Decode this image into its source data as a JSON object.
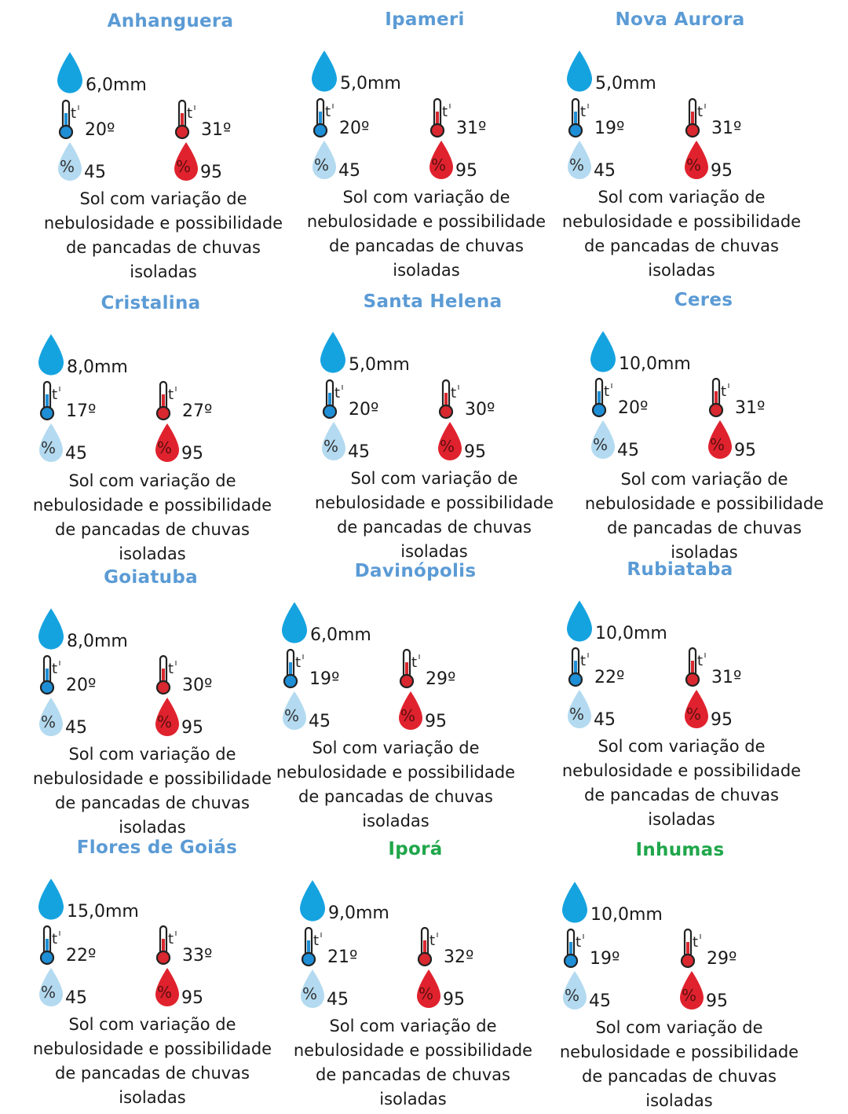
{
  "colors": {
    "title_blue": "#5b9bd5",
    "title_green": "#1fa64a",
    "rain_drop": "#15a3e0",
    "humidity_low_drop": "#b3daf0",
    "humidity_high_drop": "#e0222e",
    "thermo_min": "#1e8fd6",
    "thermo_max": "#d9282f"
  },
  "cities": [
    {
      "name": "Anhanguera",
      "title_color": "blue",
      "rain": "6,0mm",
      "temp_min": "20º",
      "temp_max": "31º",
      "humidity_min": "45",
      "humidity_max": "95",
      "description": [
        "Sol com variação de",
        "nebulosidade e possibilidade",
        "de pancadas de chuvas",
        "isoladas"
      ]
    },
    {
      "name": "Ipameri",
      "title_color": "blue",
      "rain": "5,0mm",
      "temp_min": "20º",
      "temp_max": "31º",
      "humidity_min": "45",
      "humidity_max": "95",
      "description": [
        "Sol com variação de",
        "nebulosidade e possibilidade",
        "de pancadas de chuvas",
        "isoladas"
      ]
    },
    {
      "name": "Nova Aurora",
      "title_color": "blue",
      "rain": "5,0mm",
      "temp_min": "19º",
      "temp_max": "31º",
      "humidity_min": "45",
      "humidity_max": "95",
      "description": [
        "Sol com variação de",
        "nebulosidade e possibilidade",
        "de pancadas de chuvas",
        "isoladas"
      ]
    },
    {
      "name": "Cristalina",
      "title_color": "blue",
      "rain": "8,0mm",
      "temp_min": "17º",
      "temp_max": "27º",
      "humidity_min": "45",
      "humidity_max": "95",
      "description": [
        "Sol com variação de",
        "nebulosidade e possibilidade",
        "de pancadas de chuvas",
        "isoladas"
      ]
    },
    {
      "name": "Santa Helena",
      "title_color": "blue",
      "rain": "5,0mm",
      "temp_min": "20º",
      "temp_max": "30º",
      "humidity_min": "45",
      "humidity_max": "95",
      "description": [
        "Sol com variação de",
        "nebulosidade e possibilidade",
        "de pancadas de chuvas",
        "isoladas"
      ]
    },
    {
      "name": "Ceres",
      "title_color": "blue",
      "rain": "10,0mm",
      "temp_min": "20º",
      "temp_max": "31º",
      "humidity_min": "45",
      "humidity_max": "95",
      "description": [
        "Sol com variação de",
        "nebulosidade e possibilidade",
        "de pancadas de chuvas",
        "isoladas"
      ]
    },
    {
      "name": "Goiatuba",
      "title_color": "blue",
      "rain": "8,0mm",
      "temp_min": "20º",
      "temp_max": "30º",
      "humidity_min": "45",
      "humidity_max": "95",
      "description": [
        "Sol com variação de",
        "nebulosidade e possibilidade",
        "de pancadas de chuvas",
        "isoladas"
      ]
    },
    {
      "name": "Davinópolis",
      "title_color": "blue",
      "rain": "6,0mm",
      "temp_min": "19º",
      "temp_max": "29º",
      "humidity_min": "45",
      "humidity_max": "95",
      "description": [
        "Sol com variação de",
        "nebulosidade e possibilidade",
        "de pancadas de chuvas",
        "isoladas"
      ]
    },
    {
      "name": "Rubiataba",
      "title_color": "blue",
      "rain": "10,0mm",
      "temp_min": "22º",
      "temp_max": "31º",
      "humidity_min": "45",
      "humidity_max": "95",
      "description": [
        "Sol com variação de",
        "nebulosidade e possibilidade",
        "de pancadas de chuvas",
        "isoladas"
      ]
    },
    {
      "name": "Flores de Goiás",
      "title_color": "blue",
      "rain": "15,0mm",
      "temp_min": "22º",
      "temp_max": "33º",
      "humidity_min": "45",
      "humidity_max": "95",
      "description": [
        "Sol com variação de",
        "nebulosidade e possibilidade",
        "de pancadas de chuvas",
        "isoladas"
      ]
    },
    {
      "name": "Iporá",
      "title_color": "green",
      "rain": "9,0mm",
      "temp_min": "21º",
      "temp_max": "32º",
      "humidity_min": "45",
      "humidity_max": "95",
      "description": [
        "Sol com variação de",
        "nebulosidade e possibilidade",
        "de pancadas de chuvas",
        "isoladas"
      ]
    },
    {
      "name": "Inhumas",
      "title_color": "green",
      "rain": "10,0mm",
      "temp_min": "19º",
      "temp_max": "29º",
      "humidity_min": "45",
      "humidity_max": "95",
      "description": [
        "Sol com variação de",
        "nebulosidade e possibilidade",
        "de pancadas de chuvas",
        "isoladas"
      ]
    }
  ]
}
